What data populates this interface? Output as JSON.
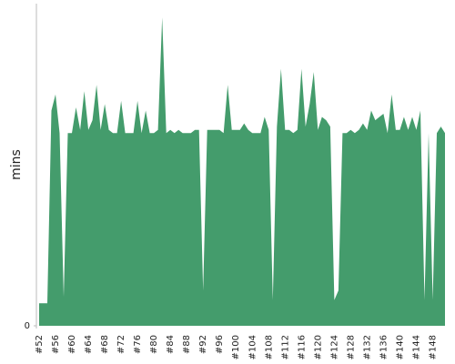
{
  "chart_data": {
    "type": "area",
    "y_label": "mins",
    "color": "#449c6c",
    "categories": [
      "#52",
      null,
      null,
      null,
      "#56",
      null,
      null,
      null,
      "#60",
      null,
      null,
      null,
      "#64",
      null,
      null,
      null,
      "#68",
      null,
      null,
      null,
      "#72",
      null,
      null,
      null,
      "#76",
      null,
      null,
      null,
      "#80",
      null,
      null,
      null,
      "#84",
      null,
      null,
      null,
      "#88",
      null,
      null,
      null,
      "#92",
      null,
      null,
      null,
      "#96",
      null,
      null,
      null,
      "#100",
      null,
      null,
      null,
      "#104",
      null,
      null,
      null,
      "#108",
      null,
      null,
      null,
      "#112",
      null,
      null,
      null,
      "#116",
      null,
      null,
      null,
      "#120",
      null,
      null,
      null,
      "#124",
      null,
      null,
      null,
      "#128",
      null,
      null,
      null,
      "#132",
      null,
      null,
      null,
      "#136",
      null,
      null,
      null,
      "#140",
      null,
      null,
      null,
      "#144",
      null,
      null,
      null,
      "#148",
      null,
      null,
      null
    ],
    "values": [
      7,
      7,
      7,
      67,
      72,
      60,
      9,
      60,
      60,
      68,
      61,
      73,
      61,
      64,
      75,
      61,
      69,
      61,
      60,
      60,
      70,
      60,
      60,
      60,
      70,
      60,
      67,
      60,
      60,
      61,
      96,
      60,
      61,
      60,
      61,
      60,
      60,
      60,
      61,
      61,
      11,
      61,
      61,
      61,
      61,
      60,
      75,
      61,
      61,
      61,
      63,
      61,
      60,
      60,
      60,
      65,
      61,
      8,
      62,
      80,
      61,
      61,
      60,
      61,
      80,
      62,
      69,
      79,
      61,
      65,
      64,
      62,
      8,
      11,
      60,
      60,
      61,
      60,
      61,
      63,
      61,
      67,
      64,
      65,
      66,
      60,
      72,
      61,
      61,
      65,
      61,
      65,
      61,
      67,
      8,
      60,
      8,
      60,
      62,
      60
    ],
    "ylim": [
      0,
      100
    ],
    "yticks": [
      0
    ]
  }
}
